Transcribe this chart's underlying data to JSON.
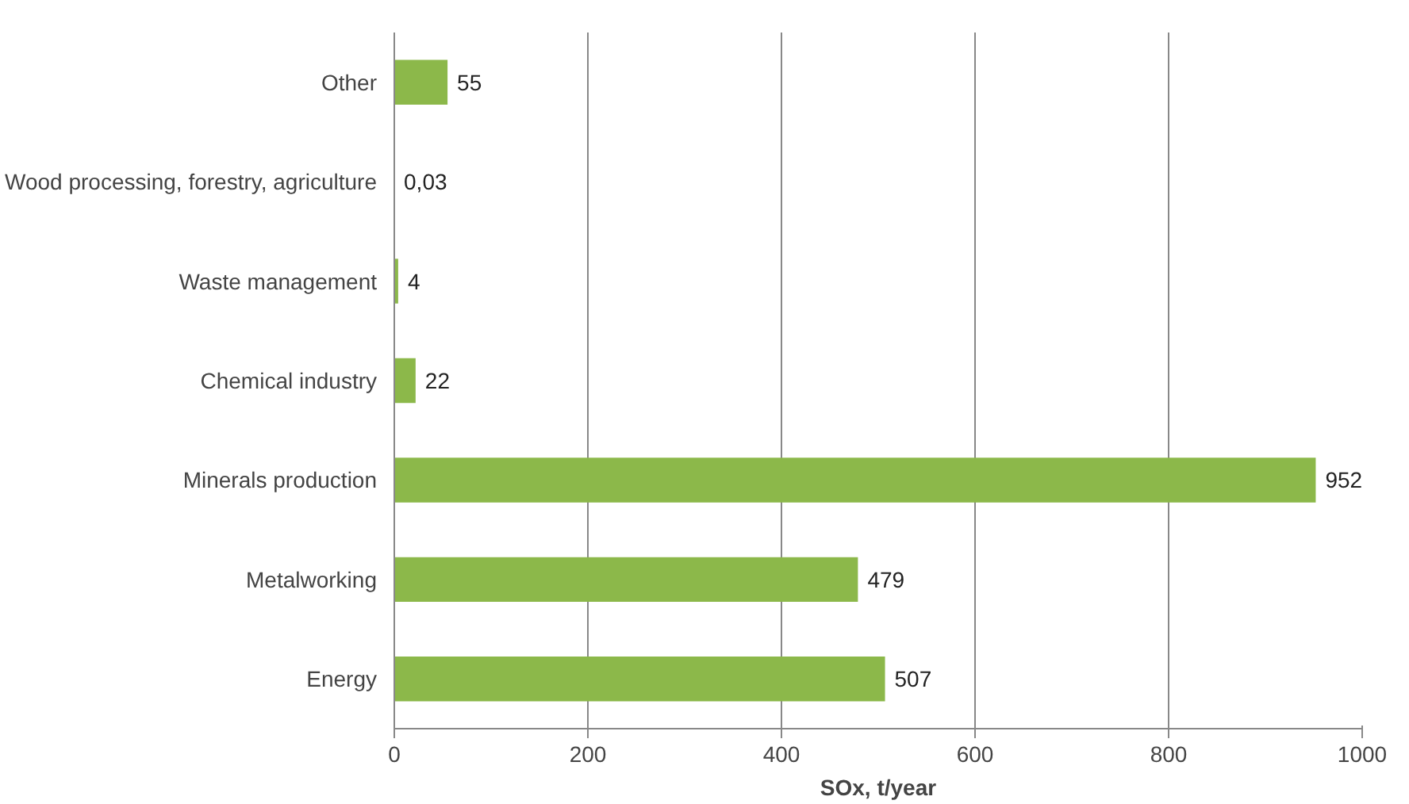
{
  "chart_data": {
    "type": "bar",
    "orientation": "horizontal",
    "xlabel": "SOx, t/year",
    "categories": [
      "Other",
      "Wood processing, forestry, agriculture",
      "Waste management",
      "Chemical industry",
      "Minerals production",
      "Metalworking",
      "Energy"
    ],
    "values": [
      55,
      0.03,
      4,
      22,
      952,
      479,
      507
    ],
    "value_labels": [
      "55",
      "0,03",
      "4",
      "22",
      "952",
      "479",
      "507"
    ],
    "color": "#8cb84a",
    "xlim": [
      0,
      1000
    ],
    "xticks": [
      0,
      200,
      400,
      600,
      800,
      1000
    ],
    "grid": "x"
  }
}
